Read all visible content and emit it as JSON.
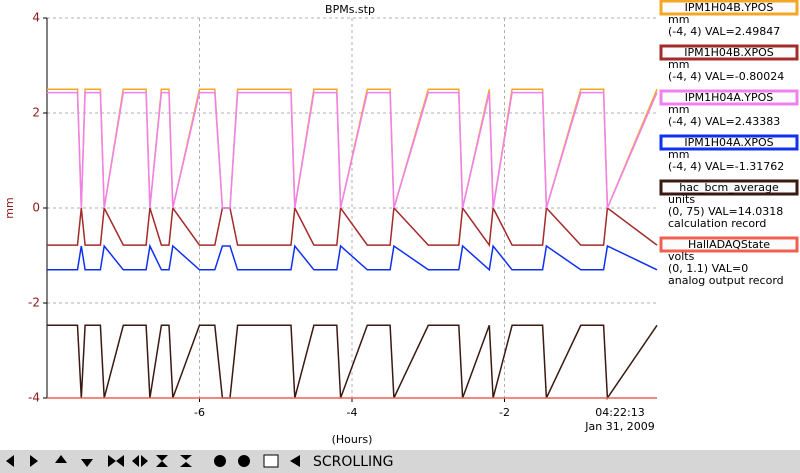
{
  "chart_data": {
    "type": "line",
    "title": "BPMs.stp",
    "ylabel": "mm",
    "xlabel": "(Hours)",
    "x_end_label": [
      "04:22:13",
      "Jan 31, 2009"
    ],
    "x": [
      -8,
      -7.6,
      -7.55,
      -7.5,
      -7.3,
      -7.25,
      -7.0,
      -6.7,
      -6.65,
      -6.5,
      -6.4,
      -6.35,
      -6.0,
      -5.8,
      -5.7,
      -5.6,
      -5.5,
      -5.2,
      -5.0,
      -4.8,
      -4.75,
      -4.5,
      -4.2,
      -4.15,
      -3.8,
      -3.5,
      -3.45,
      -3.0,
      -2.6,
      -2.55,
      -2.2,
      -2.15,
      -1.9,
      -1.5,
      -1.45,
      -1.0,
      -0.7,
      -0.65,
      0
    ],
    "xlim": [
      -8,
      0
    ],
    "xticks": [
      -6,
      -4,
      -2
    ],
    "ylim": [
      -4,
      4
    ],
    "yticks": [
      -4,
      -2,
      0,
      2,
      4
    ],
    "grid": true,
    "series": [
      {
        "name": "IPM1H04B.YPOS",
        "color": "#f5a623",
        "units": "mm",
        "range_label": "(-4, 4) VAL=2.49847",
        "values": [
          2.5,
          2.5,
          0,
          2.5,
          2.5,
          0,
          2.5,
          2.5,
          0,
          2.5,
          2.5,
          0,
          2.5,
          2.5,
          0,
          0,
          2.5,
          2.5,
          2.5,
          2.5,
          0,
          2.5,
          2.5,
          0,
          2.5,
          2.5,
          0,
          2.5,
          2.5,
          0,
          2.5,
          0,
          2.5,
          2.5,
          0,
          2.5,
          2.5,
          0,
          2.5
        ]
      },
      {
        "name": "IPM1H04B.XPOS",
        "color": "#a52a2a",
        "units": "mm",
        "range_label": "(-4, 4) VAL=-0.80024",
        "values": [
          -0.78,
          -0.78,
          0,
          -0.78,
          -0.78,
          0,
          -0.78,
          -0.78,
          0,
          -0.78,
          -0.78,
          0,
          -0.78,
          -0.78,
          0,
          0,
          -0.78,
          -0.78,
          -0.78,
          -0.78,
          0,
          -0.78,
          -0.78,
          0,
          -0.78,
          -0.78,
          0,
          -0.78,
          -0.78,
          0,
          -0.78,
          0,
          -0.78,
          -0.78,
          0,
          -0.78,
          -0.78,
          0,
          -0.78
        ]
      },
      {
        "name": "IPM1H04A.YPOS",
        "color": "#f080f0",
        "units": "mm",
        "range_label": "(-4, 4) VAL=2.43383",
        "values": [
          2.43,
          2.43,
          0,
          2.43,
          2.43,
          0,
          2.43,
          2.43,
          0,
          2.43,
          2.43,
          0,
          2.43,
          2.43,
          0,
          0,
          2.43,
          2.43,
          2.43,
          2.43,
          0,
          2.43,
          2.43,
          0,
          2.43,
          2.43,
          0,
          2.43,
          2.43,
          0,
          2.43,
          0,
          2.43,
          2.43,
          0,
          2.43,
          2.43,
          0,
          2.43
        ]
      },
      {
        "name": "IPM1H04A.XPOS",
        "color": "#1030f0",
        "units": "mm",
        "range_label": "(-4, 4) VAL=-1.31762",
        "values": [
          -1.3,
          -1.3,
          -0.8,
          -1.3,
          -1.3,
          -0.8,
          -1.3,
          -1.3,
          -0.8,
          -1.3,
          -1.3,
          -0.8,
          -1.3,
          -1.3,
          -0.8,
          -0.8,
          -1.3,
          -1.3,
          -1.3,
          -1.3,
          -0.8,
          -1.3,
          -1.3,
          -0.8,
          -1.3,
          -1.3,
          -0.8,
          -1.3,
          -1.3,
          -0.8,
          -1.3,
          -0.8,
          -1.3,
          -1.3,
          -0.8,
          -1.3,
          -1.3,
          -0.8,
          -1.3
        ]
      },
      {
        "name": "hac_bcm_average",
        "color": "#3a1a10",
        "units": "units",
        "range_label": "(0, 75) VAL=14.0318",
        "record": "calculation record",
        "values": [
          -2.47,
          -2.47,
          -4,
          -2.47,
          -2.47,
          -4,
          -2.47,
          -2.47,
          -4,
          -2.47,
          -2.47,
          -4,
          -2.47,
          -2.47,
          -4,
          -4,
          -2.47,
          -2.47,
          -2.47,
          -2.47,
          -4,
          -2.47,
          -2.47,
          -4,
          -2.47,
          -2.47,
          -4,
          -2.47,
          -2.47,
          -4,
          -2.47,
          -4,
          -2.47,
          -2.47,
          -4,
          -2.47,
          -2.47,
          -4,
          -2.47
        ]
      },
      {
        "name": "HallADAQState",
        "color": "#f06050",
        "units": "volts",
        "range_label": "(0, 1.1) VAL=0",
        "record": "analog output record",
        "values": [
          -4,
          -4,
          -4,
          -4,
          -4,
          -4,
          -4,
          -4,
          -4,
          -4,
          -4,
          -4,
          -4,
          -4,
          -4,
          -4,
          -4,
          -4,
          -4,
          -4,
          -4,
          -4,
          -4,
          -4,
          -4,
          -4,
          -4,
          -4,
          -4,
          -4,
          -4,
          -4,
          -4,
          -4,
          -4,
          -4,
          -4,
          -4,
          -4
        ]
      }
    ],
    "toolbar_status": "SCROLLING"
  }
}
